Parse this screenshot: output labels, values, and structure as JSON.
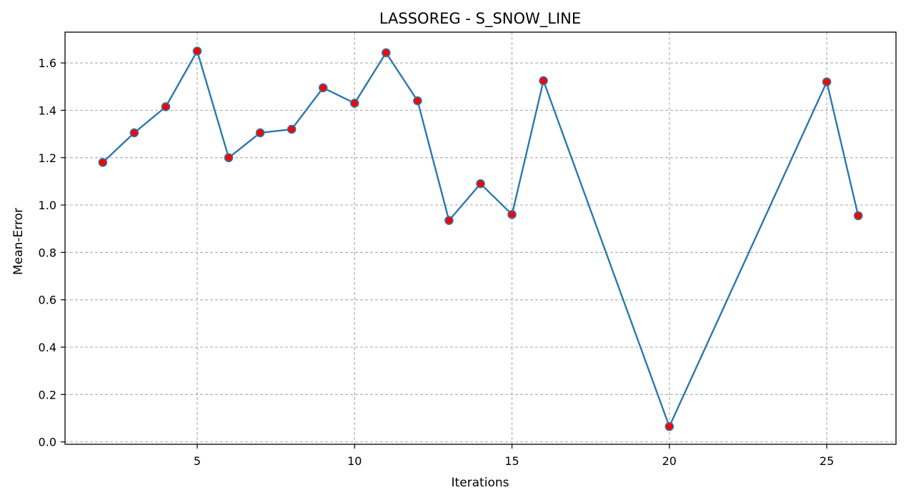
{
  "chart_data": {
    "type": "line",
    "title": "LASSOREG - S_SNOW_LINE",
    "xlabel": "Iterations",
    "ylabel": "Mean-Error",
    "xlim": [
      0.8,
      27.2
    ],
    "ylim": [
      -0.01,
      1.73
    ],
    "x_ticks": [
      5,
      10,
      15,
      20,
      25
    ],
    "y_ticks": [
      0.0,
      0.2,
      0.4,
      0.6,
      0.8,
      1.0,
      1.2,
      1.4,
      1.6
    ],
    "x_tick_labels": [
      "5",
      "10",
      "15",
      "20",
      "25"
    ],
    "y_tick_labels": [
      "0.0",
      "0.2",
      "0.4",
      "0.6",
      "0.8",
      "1.0",
      "1.2",
      "1.4",
      "1.6"
    ],
    "grid": true,
    "series": [
      {
        "line_color": "#2b78ad",
        "marker_color": "#ff0000",
        "x": [
          2,
          3,
          4,
          5,
          6,
          7,
          8,
          9,
          10,
          11,
          12,
          13,
          14,
          15,
          16,
          20,
          25,
          26
        ],
        "values": [
          1.18,
          1.305,
          1.415,
          1.65,
          1.2,
          1.305,
          1.32,
          1.495,
          1.43,
          1.643,
          1.44,
          0.935,
          1.09,
          0.96,
          1.525,
          0.065,
          1.52,
          0.955
        ]
      }
    ]
  }
}
